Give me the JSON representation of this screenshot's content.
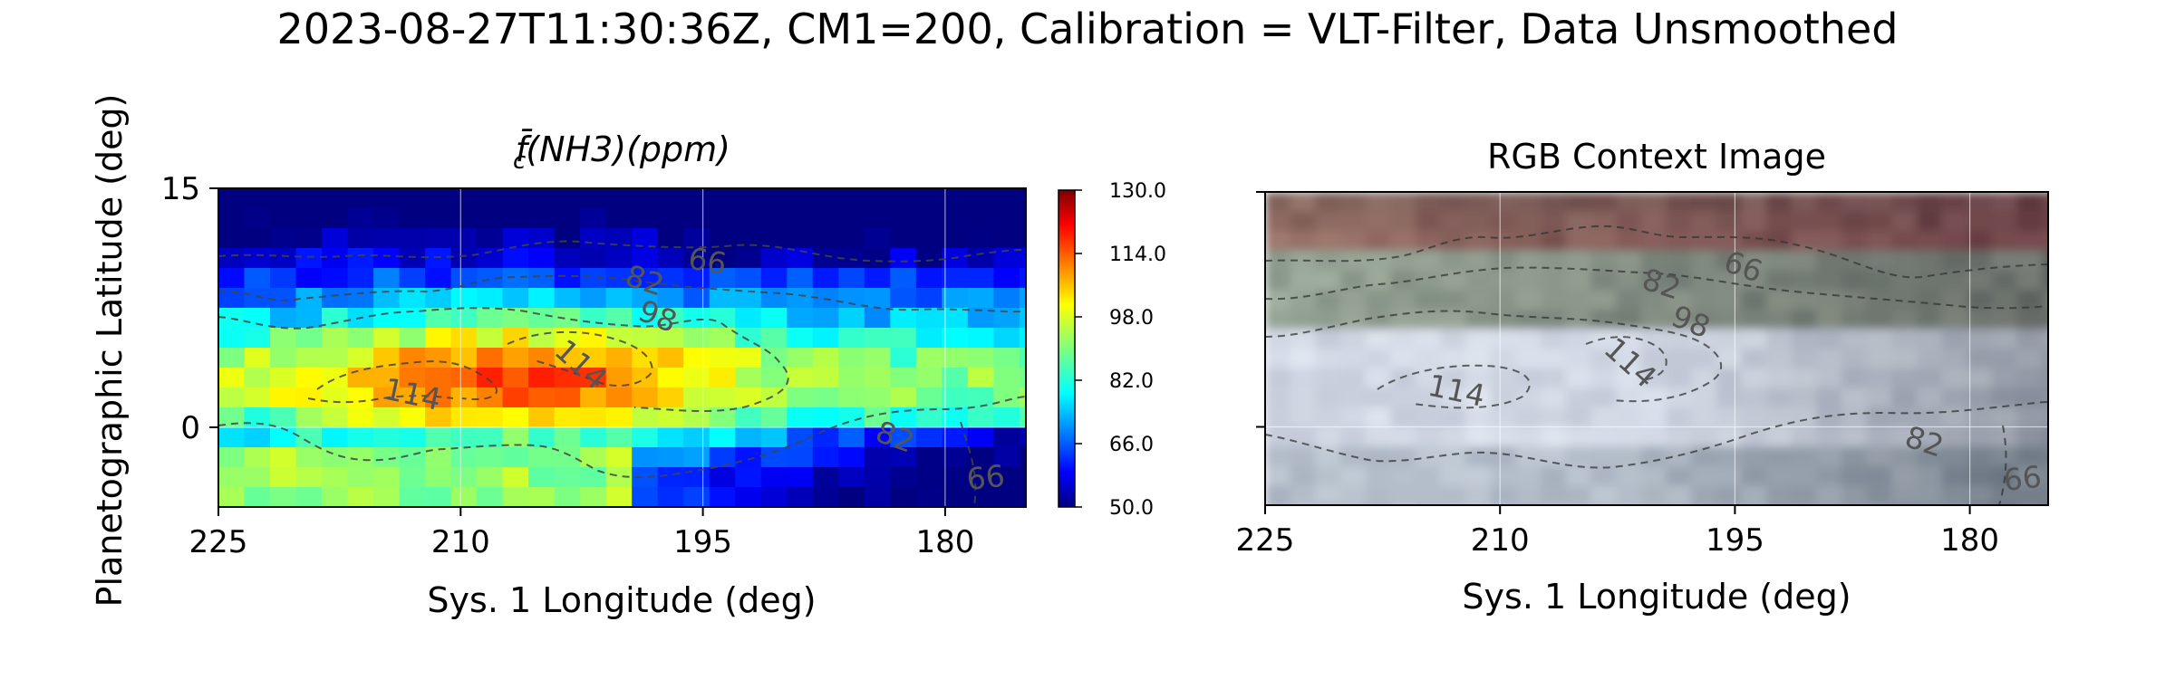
{
  "figure": {
    "suptitle": "2023-08-27T11:30:36Z, CM1=200, Calibration = VLT-Filter, Data Unsmoothed",
    "shared_ylabel": "Planetographic Latitude (deg)"
  },
  "chart_data": [
    {
      "type": "heatmap",
      "title": "f̄c(NH3)(ppm)",
      "title_parts": {
        "f": "f",
        "bar": "̄",
        "sub": "c",
        "rest": "(NH3)(ppm)"
      },
      "xlabel": "Sys. 1 Longitude (deg)",
      "ylabel": "Planetographic Latitude (deg)",
      "xlim": [
        225,
        175
      ],
      "ylim": [
        -5,
        15
      ],
      "xticks": [
        "225",
        "210",
        "195",
        "180"
      ],
      "yticks": [
        "15",
        "0"
      ],
      "colormap": "jet",
      "colorbar": {
        "min": 50.0,
        "max": 130.0,
        "ticks": [
          "130.0",
          "114.0",
          "98.0",
          "82.0",
          "66.0",
          "50.0"
        ]
      },
      "contour_levels": [
        66,
        82,
        98,
        114
      ],
      "contour_labels": [
        "82",
        "66",
        "98",
        "114",
        "114",
        "82",
        "66"
      ],
      "grid": true,
      "field_summary": [
        {
          "lat": 13,
          "lon_range": [
            225,
            175
          ],
          "ppm_range": [
            55,
            80
          ],
          "note": "low NH3 north, deepest blue near 190-178"
        },
        {
          "lat": 8,
          "lon_range": [
            225,
            175
          ],
          "ppm_range": [
            75,
            95
          ]
        },
        {
          "lat": 4,
          "lon_range": [
            220,
            197
          ],
          "ppm_range": [
            105,
            122
          ],
          "note": "high NH3 band peaks near 207"
        },
        {
          "lat": 1,
          "lon_range": [
            225,
            190
          ],
          "ppm_range": [
            90,
            100
          ]
        },
        {
          "lat": -3,
          "lon_range": [
            193,
            176
          ],
          "ppm_range": [
            60,
            78
          ],
          "note": "low NH3 south-east"
        }
      ]
    },
    {
      "type": "image",
      "title": "RGB Context Image",
      "xlabel": "Sys. 1 Longitude (deg)",
      "xlim": [
        225,
        175
      ],
      "ylim": [
        -5,
        15
      ],
      "xticks": [
        "225",
        "210",
        "195",
        "180"
      ],
      "contour_levels": [
        66,
        82,
        98,
        114
      ],
      "contour_labels": [
        "82",
        "66",
        "98",
        "114",
        "114",
        "82",
        "66"
      ],
      "grid": true
    }
  ]
}
